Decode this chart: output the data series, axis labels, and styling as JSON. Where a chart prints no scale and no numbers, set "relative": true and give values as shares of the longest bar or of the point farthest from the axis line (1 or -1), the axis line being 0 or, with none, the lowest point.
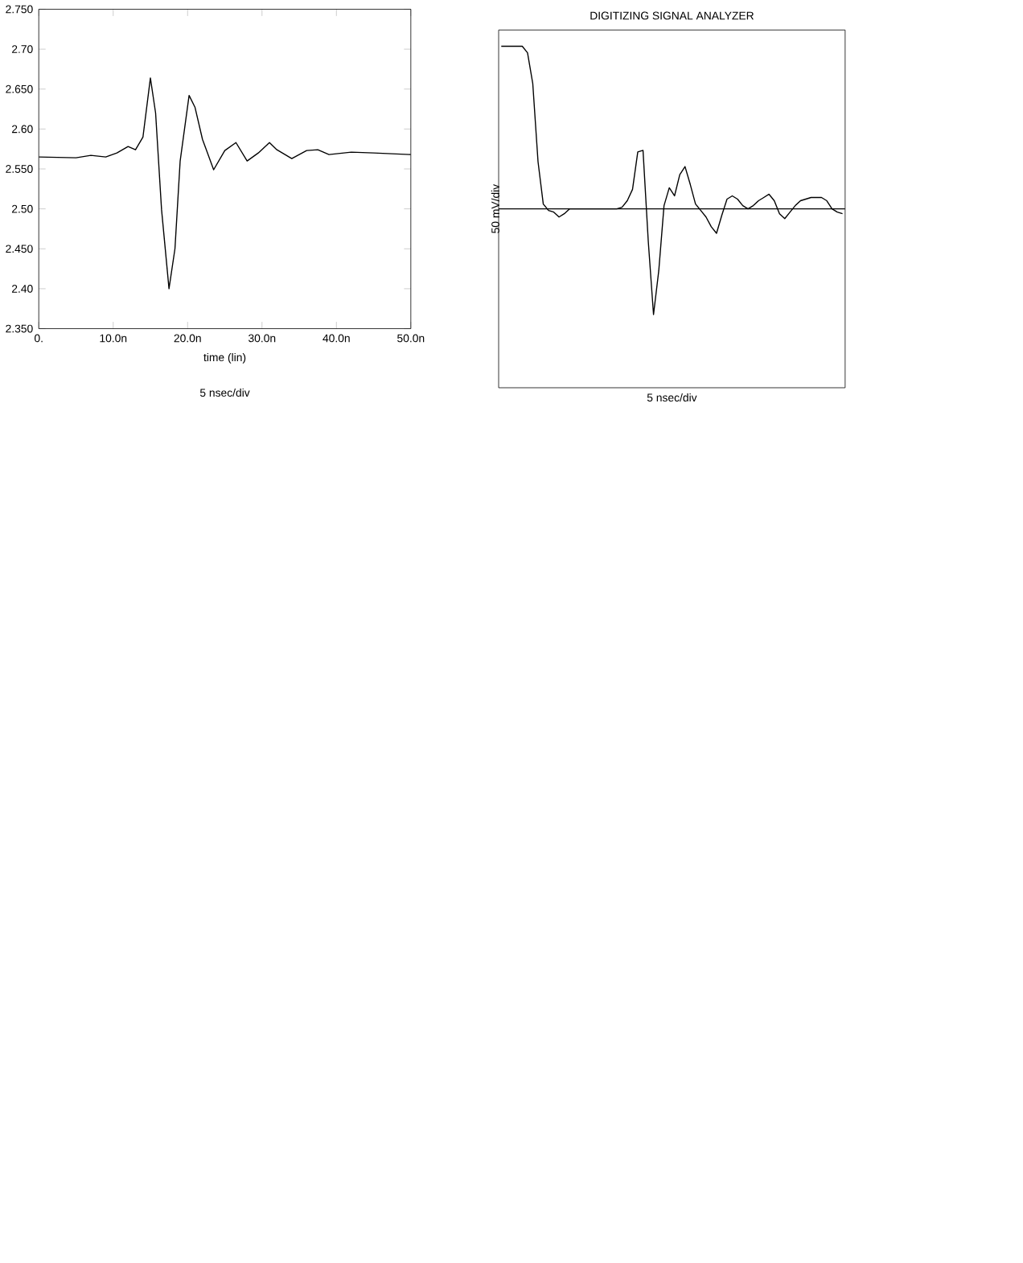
{
  "chart_data": [
    {
      "type": "line",
      "xlabel": "time (lin)",
      "annotations": [
        "5 nsec/div"
      ],
      "color": "#000000",
      "grid": false,
      "x": [
        0,
        5,
        7,
        9,
        10.5,
        12,
        13,
        14,
        15,
        15.7,
        16.5,
        17.5,
        18.3,
        19,
        20.2,
        21,
        22,
        23.5,
        25,
        26.5,
        28,
        29.5,
        31,
        32,
        34,
        36,
        37.5,
        39,
        42,
        45,
        50
      ],
      "values": [
        2.565,
        2.564,
        2.567,
        2.565,
        2.57,
        2.578,
        2.574,
        2.59,
        2.664,
        2.62,
        2.499,
        2.4,
        2.45,
        2.56,
        2.642,
        2.627,
        2.587,
        2.549,
        2.573,
        2.583,
        2.56,
        2.57,
        2.583,
        2.574,
        2.563,
        2.573,
        2.574,
        2.568,
        2.571,
        2.57,
        2.568
      ],
      "xlim": [
        0,
        50
      ],
      "ylim": [
        2.35,
        2.75
      ],
      "xticks": [
        {
          "value": 0,
          "label": "0."
        },
        {
          "value": 10,
          "label": "10.0n"
        },
        {
          "value": 20,
          "label": "20.0n"
        },
        {
          "value": 30,
          "label": "30.0n"
        },
        {
          "value": 40,
          "label": "40.0n"
        },
        {
          "value": 50,
          "label": "50.0n"
        }
      ],
      "yticks": [
        {
          "value": 2.35,
          "label": "2.350"
        },
        {
          "value": 2.4,
          "label": "2.40"
        },
        {
          "value": 2.45,
          "label": "2.450"
        },
        {
          "value": 2.5,
          "label": "2.50"
        },
        {
          "value": 2.55,
          "label": "2.550"
        },
        {
          "value": 2.6,
          "label": "2.60"
        },
        {
          "value": 2.65,
          "label": "2.650"
        },
        {
          "value": 2.7,
          "label": "2.70"
        },
        {
          "value": 2.75,
          "label": "2.750"
        }
      ]
    },
    {
      "type": "line",
      "title": "DIGITIZING SIGNAL ANALYZER",
      "xlabel": "5 nsec/div",
      "ylabel": "50 mV/div",
      "relative": true,
      "color": "#000000",
      "categories": [
        null,
        null,
        null,
        null,
        null,
        null,
        null,
        null,
        null,
        null,
        null,
        null,
        null,
        null,
        null,
        null,
        null,
        null,
        null,
        null,
        null,
        null,
        null,
        null,
        null,
        null,
        null,
        null,
        null,
        null,
        null,
        null,
        null,
        null,
        null,
        null,
        null,
        null,
        null,
        null,
        null,
        null,
        null,
        null,
        null,
        null,
        null,
        null,
        null,
        null,
        null,
        null,
        null,
        null,
        null,
        null,
        null,
        null,
        null,
        null,
        null,
        null,
        null,
        null,
        null,
        null
      ],
      "values": [
        1,
        1,
        1,
        1,
        1,
        0.96,
        0.77,
        0.29,
        0.03,
        -0.01,
        -0.02,
        -0.05,
        -0.03,
        0,
        0,
        0,
        0,
        0,
        0,
        0,
        0,
        0,
        0,
        0.01,
        0.05,
        0.12,
        0.35,
        0.36,
        -0.2,
        -0.65,
        -0.38,
        0.02,
        0.13,
        0.08,
        0.21,
        0.26,
        0.15,
        0.03,
        -0.01,
        -0.05,
        -0.11,
        -0.15,
        -0.04,
        0.06,
        0.08,
        0.06,
        0.02,
        0,
        0.02,
        0.05,
        0.07,
        0.09,
        0.05,
        -0.03,
        -0.06,
        -0.02,
        0.02,
        0.05,
        0.06,
        0.07,
        0.07,
        0.07,
        0.05,
        0,
        -0.02,
        -0.03
      ]
    }
  ]
}
